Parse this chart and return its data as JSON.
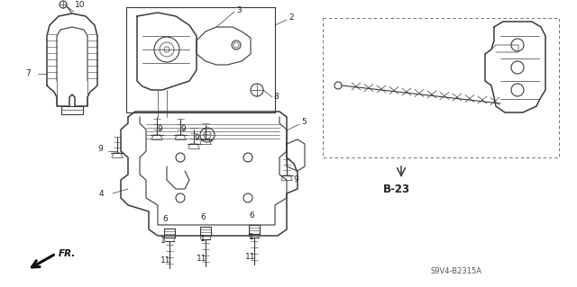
{
  "bg_color": "#ffffff",
  "line_color": "#3a3a3a",
  "part_code": "S9V4-B2315A",
  "ref_label": "B-23",
  "fig_width": 6.4,
  "fig_height": 3.19,
  "dpi": 100
}
